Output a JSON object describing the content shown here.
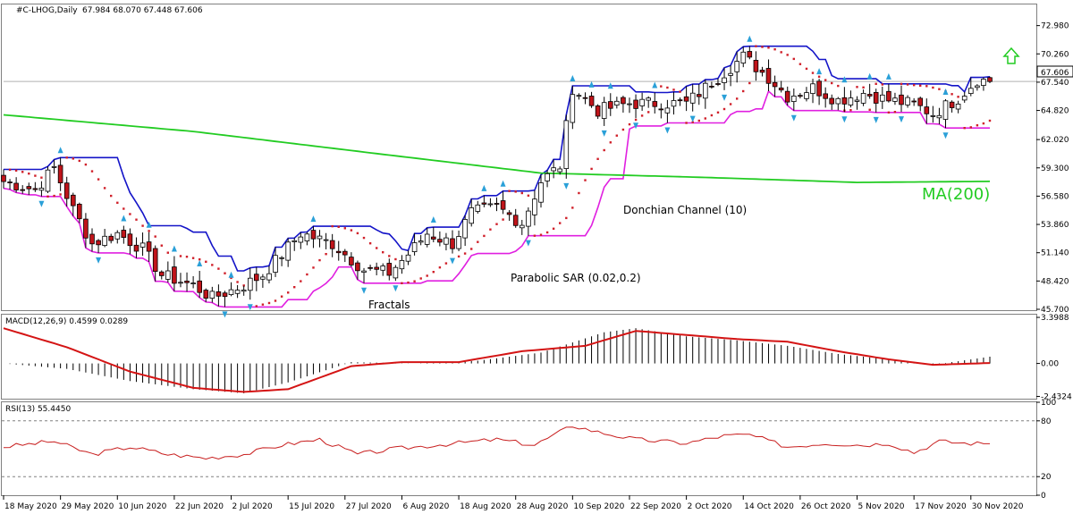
{
  "header": {
    "symbol_label": "#C-LHOG,Daily",
    "ohlc_label": "67.984 68.070 67.448 67.606"
  },
  "price_panel": {
    "ylim": [
      45.7,
      73.98
    ],
    "y_ticks": [
      "72.980",
      "70.260",
      "67.540",
      "64.820",
      "62.020",
      "59.300",
      "56.580",
      "53.860",
      "51.140",
      "48.420",
      "45.700"
    ],
    "last_price_label": "67.606",
    "last_price": 67.606,
    "annotations": {
      "donchian": "Donchian Channel (10)",
      "sar": "Parabolic SAR (0.02,0.2)",
      "fractals": "Fractals",
      "ma": "MA(200)"
    }
  },
  "macd_panel": {
    "label": "MACD(12,26,9) 0.4599 0.0289",
    "ylim": [
      -2.6,
      3.6
    ],
    "y_ticks": [
      "3.3988",
      "0.00",
      "-2.4324"
    ]
  },
  "rsi_panel": {
    "label": "RSI(13) 55.4450",
    "ylim": [
      0,
      100
    ],
    "y_ticks": [
      "100",
      "80",
      "20",
      "0"
    ],
    "levels": [
      80,
      20
    ]
  },
  "x_axis": {
    "labels": [
      "18 May 2020",
      "29 May 2020",
      "10 Jun 2020",
      "22 Jun 2020",
      "2 Jul 2020",
      "15 Jul 2020",
      "27 Jul 2020",
      "6 Aug 2020",
      "18 Aug 2020",
      "28 Aug 2020",
      "10 Sep 2020",
      "22 Sep 2020",
      "2 Oct 2020",
      "14 Oct 2020",
      "26 Oct 2020",
      "5 Nov 2020",
      "17 Nov 2020",
      "30 Nov 2020"
    ],
    "label_bars": [
      0,
      9,
      18,
      27,
      36,
      45,
      54,
      63,
      72,
      81,
      90,
      99,
      108,
      117,
      126,
      135,
      144,
      153
    ]
  },
  "colors": {
    "up_candle": "#ffffff",
    "down_candle": "#c0141a",
    "donchian_upper": "#1414c8",
    "donchian_lower": "#e020e0",
    "ma200": "#22cc22",
    "sar": "#d0202a",
    "macd_signal": "#d41414",
    "rsi": "#c81e1e",
    "fractal": "#2aa0d8",
    "arrow": "#22cc22"
  },
  "chart_data": {
    "type": "candlestick",
    "bars": 157,
    "close_anchors": [
      [
        0,
        58.0
      ],
      [
        5,
        57.2
      ],
      [
        8,
        59.3
      ],
      [
        11,
        55.3
      ],
      [
        14,
        52.0
      ],
      [
        18,
        53.0
      ],
      [
        22,
        51.5
      ],
      [
        25,
        49.0
      ],
      [
        30,
        48.0
      ],
      [
        33,
        46.8
      ],
      [
        38,
        48.0
      ],
      [
        41,
        49.0
      ],
      [
        44,
        51.0
      ],
      [
        47,
        53.0
      ],
      [
        52,
        52.0
      ],
      [
        57,
        49.5
      ],
      [
        61,
        49.2
      ],
      [
        64,
        51.0
      ],
      [
        67,
        53.0
      ],
      [
        71,
        52.0
      ],
      [
        74,
        55.0
      ],
      [
        78,
        55.5
      ],
      [
        82,
        54.0
      ],
      [
        85,
        58.0
      ],
      [
        88,
        59.5
      ],
      [
        90,
        67.0
      ],
      [
        94,
        64.8
      ],
      [
        99,
        65.5
      ],
      [
        104,
        65.5
      ],
      [
        108,
        65.5
      ],
      [
        112,
        67.5
      ],
      [
        117,
        70.0
      ],
      [
        121,
        68.0
      ],
      [
        124,
        66.2
      ],
      [
        128,
        67.0
      ],
      [
        132,
        65.8
      ],
      [
        136,
        66.5
      ],
      [
        140,
        65.8
      ],
      [
        144,
        65.4
      ],
      [
        147,
        64.5
      ],
      [
        151,
        66.0
      ],
      [
        154,
        67.8
      ],
      [
        156,
        67.606
      ]
    ],
    "ma200_anchors": [
      [
        0,
        64.4
      ],
      [
        30,
        62.8
      ],
      [
        60,
        60.6
      ],
      [
        85,
        58.8
      ],
      [
        110,
        58.4
      ],
      [
        135,
        57.9
      ],
      [
        156,
        58.0
      ]
    ],
    "macd_anchors": [
      [
        0,
        0.0
      ],
      [
        10,
        -0.4
      ],
      [
        20,
        -1.3
      ],
      [
        30,
        -1.9
      ],
      [
        38,
        -2.2
      ],
      [
        45,
        -1.4
      ],
      [
        55,
        0.1
      ],
      [
        65,
        0.0
      ],
      [
        75,
        0.2
      ],
      [
        85,
        0.8
      ],
      [
        95,
        2.3
      ],
      [
        100,
        2.6
      ],
      [
        108,
        2.0
      ],
      [
        116,
        1.7
      ],
      [
        124,
        1.3
      ],
      [
        132,
        0.7
      ],
      [
        140,
        0.3
      ],
      [
        147,
        -0.1
      ],
      [
        156,
        0.5
      ]
    ],
    "signal_anchors": [
      [
        0,
        2.6
      ],
      [
        10,
        1.2
      ],
      [
        20,
        -0.6
      ],
      [
        30,
        -1.8
      ],
      [
        38,
        -2.1
      ],
      [
        45,
        -1.9
      ],
      [
        55,
        -0.2
      ],
      [
        63,
        0.1
      ],
      [
        72,
        0.1
      ],
      [
        82,
        0.9
      ],
      [
        92,
        1.3
      ],
      [
        100,
        2.4
      ],
      [
        108,
        2.1
      ],
      [
        116,
        1.8
      ],
      [
        124,
        1.6
      ],
      [
        132,
        0.9
      ],
      [
        140,
        0.3
      ],
      [
        147,
        -0.1
      ],
      [
        156,
        0.03
      ]
    ],
    "rsi_anchors": [
      [
        0,
        52
      ],
      [
        8,
        58
      ],
      [
        14,
        44
      ],
      [
        20,
        52
      ],
      [
        26,
        44
      ],
      [
        32,
        40
      ],
      [
        38,
        44
      ],
      [
        44,
        54
      ],
      [
        50,
        60
      ],
      [
        56,
        44
      ],
      [
        62,
        50
      ],
      [
        70,
        55
      ],
      [
        78,
        60
      ],
      [
        84,
        54
      ],
      [
        90,
        75
      ],
      [
        94,
        68
      ],
      [
        100,
        60
      ],
      [
        108,
        56
      ],
      [
        114,
        64
      ],
      [
        118,
        65
      ],
      [
        124,
        52
      ],
      [
        130,
        56
      ],
      [
        136,
        54
      ],
      [
        140,
        56
      ],
      [
        144,
        46
      ],
      [
        148,
        58
      ],
      [
        152,
        56
      ],
      [
        156,
        55.4
      ]
    ],
    "rsi_last": 55.445
  }
}
